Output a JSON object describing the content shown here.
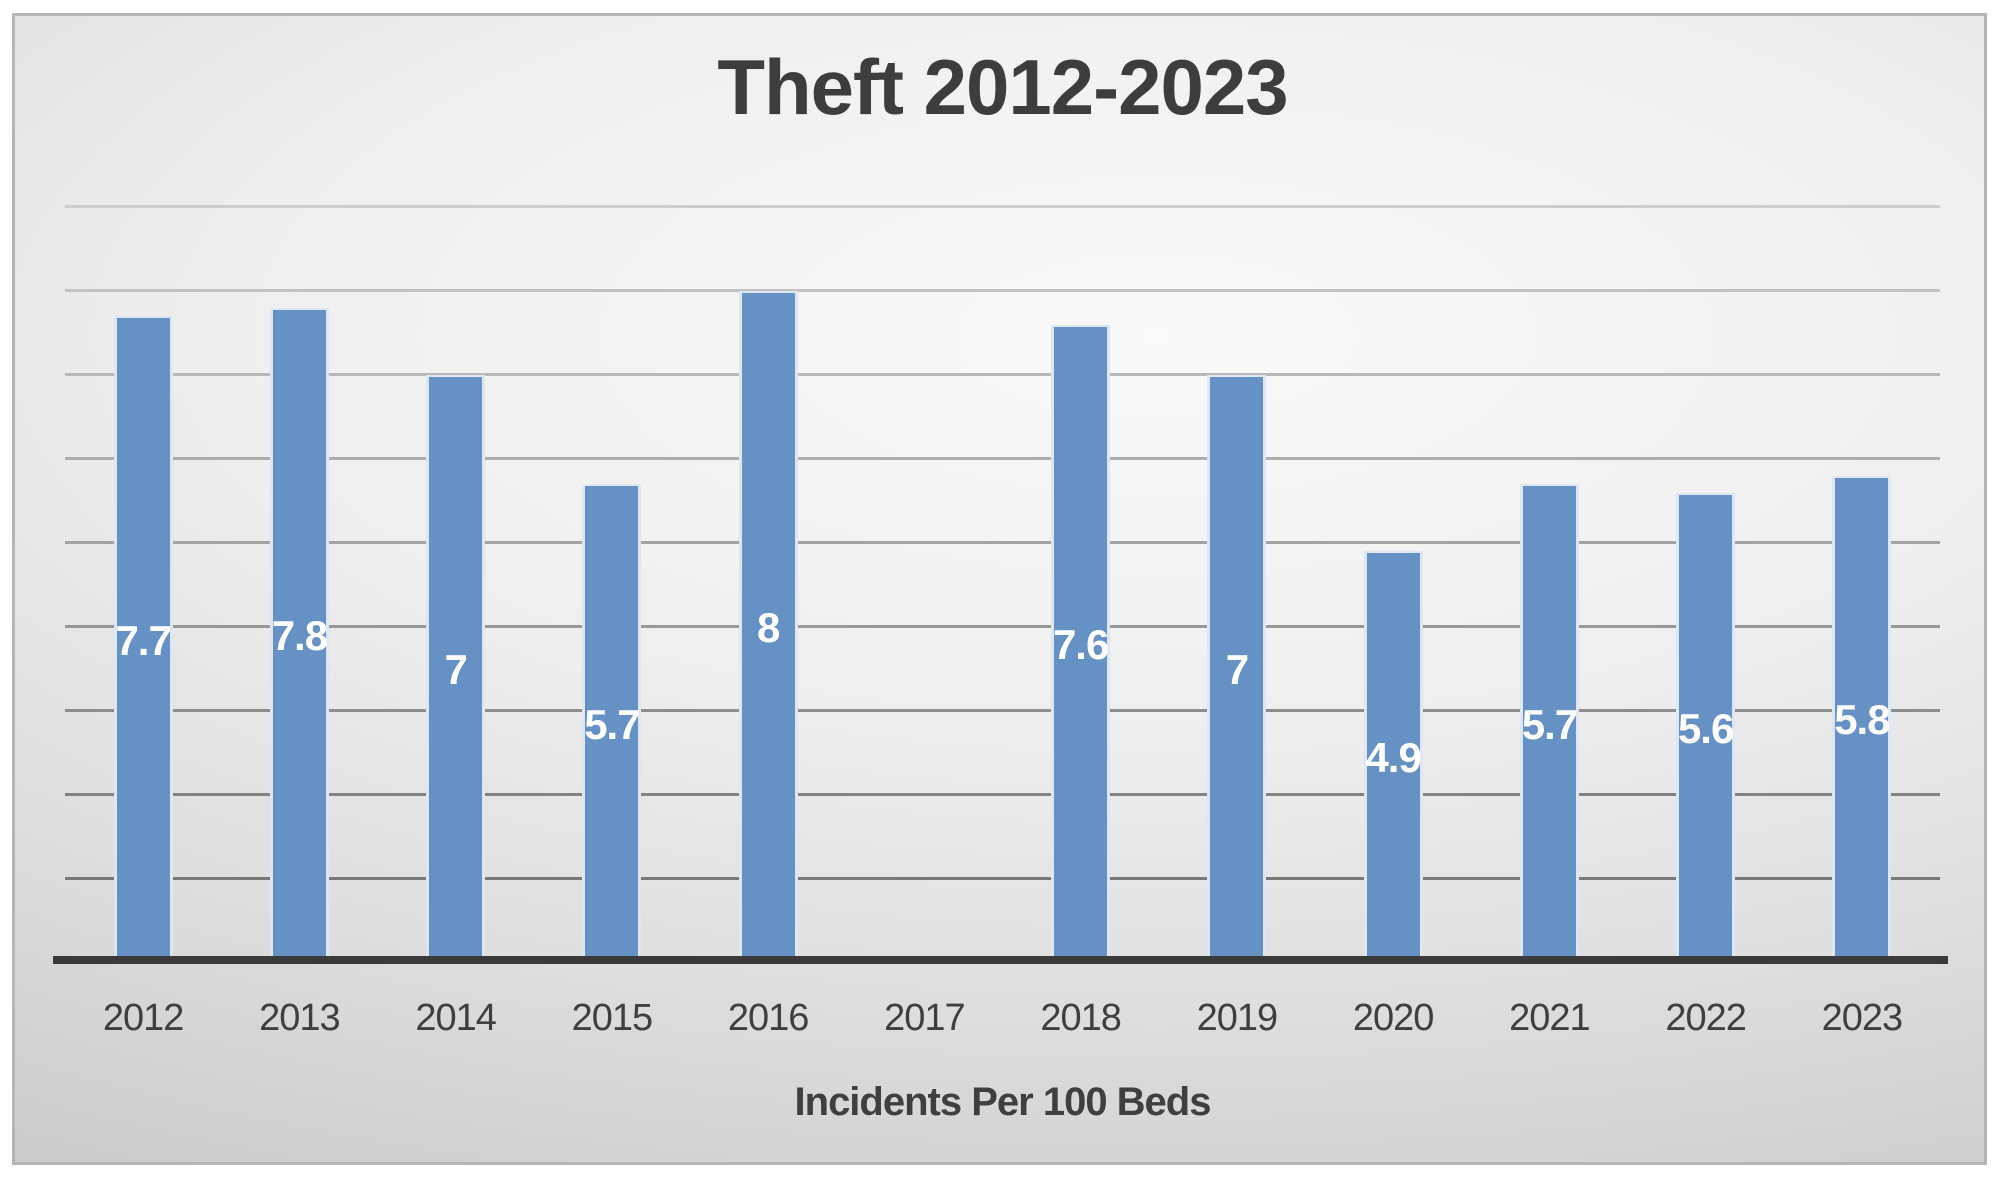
{
  "chart_data": {
    "type": "bar",
    "title": "Theft 2012-2023",
    "xlabel": "Incidents Per 100 Beds",
    "categories": [
      "2012",
      "2013",
      "2014",
      "2015",
      "2016",
      "2017",
      "2018",
      "2019",
      "2020",
      "2021",
      "2022",
      "2023"
    ],
    "values": [
      7.7,
      7.8,
      7,
      5.7,
      8,
      null,
      7.6,
      7,
      4.9,
      5.7,
      5.6,
      5.8
    ],
    "data_labels": [
      "7.7",
      "7.8",
      "7",
      "5.7",
      "8",
      null,
      "7.6",
      "7",
      "4.9",
      "5.7",
      "5.6",
      "5.8"
    ],
    "ylim": [
      0,
      9
    ],
    "gridline_step": 1,
    "grid_on": true,
    "legend_position": "none",
    "y_axis_labels_visible": false,
    "bar_color": "#6591c5",
    "bar_border_color": "#dde7f3",
    "data_label_color": "#ffffff",
    "axis_line_color": "#3a3a3a",
    "tick_label_color": "#3f3f3f",
    "title_color": "#3d3d3d",
    "gridline_color_top": "#cdcdcd",
    "gridline_color_bottom": "#787878"
  }
}
